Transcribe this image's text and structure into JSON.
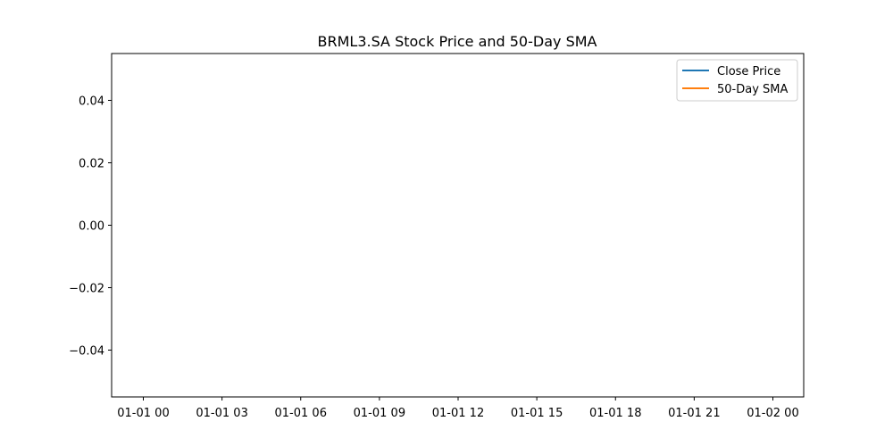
{
  "chart_data": {
    "type": "line",
    "title": "BRML3.SA Stock Price and 50-Day SMA",
    "xlabel": "",
    "ylabel": "",
    "x_tick_labels": [
      "01-01 00",
      "01-01 03",
      "01-01 06",
      "01-01 09",
      "01-01 12",
      "01-01 15",
      "01-01 18",
      "01-01 21",
      "01-02 00"
    ],
    "y_tick_labels": [
      "0.04",
      "0.02",
      "0.00",
      "−0.02",
      "−0.04"
    ],
    "y_ticks": [
      0.04,
      0.02,
      0.0,
      -0.02,
      -0.04
    ],
    "ylim": [
      -0.055,
      0.055
    ],
    "xlim": [
      "01-01 00",
      "01-02 00"
    ],
    "grid": false,
    "legend_position": "top-right",
    "series": [
      {
        "name": "Close Price",
        "color": "#1f77b4",
        "x": [],
        "y": []
      },
      {
        "name": "50-Day SMA",
        "color": "#ff7f0e",
        "x": [],
        "y": []
      }
    ]
  }
}
